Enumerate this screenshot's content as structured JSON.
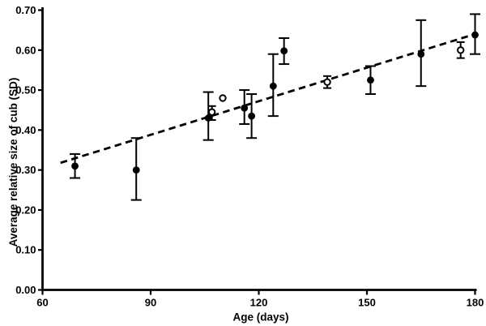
{
  "figure": {
    "background": "#ffffff",
    "ink_color": "#000000"
  },
  "chart_data": {
    "type": "scatter",
    "title": "",
    "xlabel": "Age (days)",
    "ylabel": "Average relative size of cub (SD)",
    "xlim": [
      60,
      180
    ],
    "ylim": [
      0.0,
      0.7
    ],
    "xticks": [
      60,
      90,
      120,
      150,
      180
    ],
    "ytick_labels": [
      "0.00",
      "0.10",
      "0.20",
      "0.30",
      "0.40",
      "0.50",
      "0.60",
      "0.70"
    ],
    "grid": false,
    "legend": "none",
    "series": [
      {
        "name": "filled-circles",
        "marker": "filled-circle",
        "color": "#000000",
        "points": [
          {
            "x": 69,
            "y": 0.31,
            "err_lo": 0.28,
            "err_hi": 0.34
          },
          {
            "x": 86,
            "y": 0.3,
            "err_lo": 0.225,
            "err_hi": 0.38
          },
          {
            "x": 106,
            "y": 0.43,
            "err_lo": 0.375,
            "err_hi": 0.495
          },
          {
            "x": 116,
            "y": 0.455,
            "err_lo": 0.415,
            "err_hi": 0.5
          },
          {
            "x": 118,
            "y": 0.435,
            "err_lo": 0.38,
            "err_hi": 0.49
          },
          {
            "x": 124,
            "y": 0.51,
            "err_lo": 0.435,
            "err_hi": 0.59
          },
          {
            "x": 127,
            "y": 0.598,
            "err_lo": 0.565,
            "err_hi": 0.63
          },
          {
            "x": 151,
            "y": 0.525,
            "err_lo": 0.49,
            "err_hi": 0.56
          },
          {
            "x": 165,
            "y": 0.59,
            "err_lo": 0.51,
            "err_hi": 0.675
          },
          {
            "x": 180,
            "y": 0.638,
            "err_lo": 0.59,
            "err_hi": 0.69
          }
        ]
      },
      {
        "name": "open-circles",
        "marker": "open-circle",
        "color": "#000000",
        "points": [
          {
            "x": 107,
            "y": 0.445,
            "err_lo": 0.425,
            "err_hi": 0.46
          },
          {
            "x": 110,
            "y": 0.48
          },
          {
            "x": 139,
            "y": 0.52,
            "err_lo": 0.505,
            "err_hi": 0.535
          },
          {
            "x": 176,
            "y": 0.6,
            "err_lo": 0.58,
            "err_hi": 0.62
          }
        ]
      }
    ],
    "trendline": {
      "style": "dashed",
      "x1": 65,
      "y1": 0.318,
      "x2": 180.3,
      "y2": 0.641
    }
  }
}
